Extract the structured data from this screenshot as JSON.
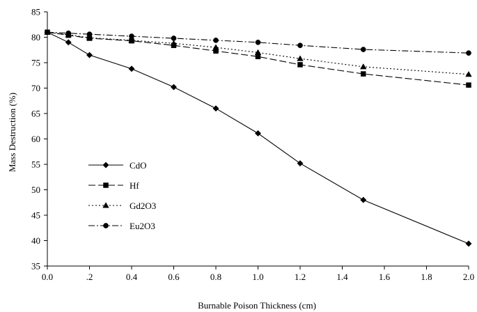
{
  "chart_data": {
    "type": "line",
    "title": "",
    "xlabel": "Burnable Poison Thickness (cm)",
    "ylabel": "Mass Destruction (%)",
    "xlim": [
      0.0,
      2.0
    ],
    "ylim": [
      35,
      85
    ],
    "x_ticks": [
      0.0,
      0.2,
      0.4,
      0.6,
      0.8,
      1.0,
      1.2,
      1.4,
      1.6,
      1.8,
      2.0
    ],
    "x_tick_labels": [
      "0.0",
      ".2",
      "0.4",
      "0.6",
      "0.8",
      "1.0",
      "1.2",
      "1.4",
      "1.6",
      "1.8",
      "2.0"
    ],
    "y_ticks": [
      35,
      40,
      45,
      50,
      55,
      60,
      65,
      70,
      75,
      80,
      85
    ],
    "y_tick_labels": [
      "35",
      "40",
      "45",
      "50",
      "55",
      "60",
      "65",
      "70",
      "75",
      "80",
      "85"
    ],
    "grid": false,
    "legend_position": "lower-left",
    "series": [
      {
        "name": "CdO",
        "marker": "diamond",
        "dash": "solid",
        "x": [
          0.0,
          0.1,
          0.2,
          0.4,
          0.6,
          0.8,
          1.0,
          1.2,
          1.5,
          2.0
        ],
        "y": [
          81.0,
          79.0,
          76.5,
          73.8,
          70.2,
          66.0,
          61.1,
          55.2,
          48.0,
          39.4
        ]
      },
      {
        "name": "Hf",
        "marker": "square",
        "dash": "long-dash",
        "x": [
          0.0,
          0.1,
          0.2,
          0.4,
          0.6,
          0.8,
          1.0,
          1.2,
          1.5,
          2.0
        ],
        "y": [
          81.0,
          80.4,
          79.8,
          79.3,
          78.4,
          77.3,
          76.2,
          74.6,
          72.8,
          70.6
        ]
      },
      {
        "name": "Gd2O3",
        "marker": "triangle",
        "dash": "dotted",
        "x": [
          0.0,
          0.1,
          0.2,
          0.4,
          0.6,
          0.8,
          1.0,
          1.2,
          1.5,
          2.0
        ],
        "y": [
          81.0,
          80.5,
          79.9,
          79.4,
          78.8,
          78.0,
          77.0,
          75.8,
          74.2,
          72.7
        ]
      },
      {
        "name": "Eu2O3",
        "marker": "circle",
        "dash": "dash-dot",
        "x": [
          0.0,
          0.1,
          0.2,
          0.4,
          0.6,
          0.8,
          1.0,
          1.2,
          1.5,
          2.0
        ],
        "y": [
          81.0,
          80.8,
          80.6,
          80.2,
          79.8,
          79.4,
          79.0,
          78.4,
          77.6,
          76.9
        ]
      }
    ]
  }
}
